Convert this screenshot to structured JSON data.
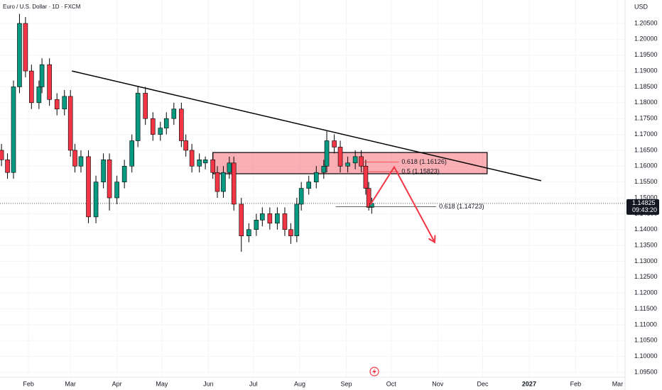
{
  "chart_data": {
    "type": "candlestick",
    "title": "Euro / U.S. Dollar · 1D · FXCM",
    "currency": "USD",
    "up_color": "#089981",
    "down_color": "#f23645",
    "xlim": [
      13,
      430
    ],
    "ylim": [
      1.09344,
      1.21238
    ],
    "xticks": [
      {
        "value": 32,
        "label": "Feb"
      },
      {
        "value": 60,
        "label": "Mar"
      },
      {
        "value": 91,
        "label": "Apr"
      },
      {
        "value": 121,
        "label": "May"
      },
      {
        "value": 152,
        "label": "Jun"
      },
      {
        "value": 182,
        "label": "Jul"
      },
      {
        "value": 213,
        "label": "Aug"
      },
      {
        "value": 244,
        "label": "Sep"
      },
      {
        "value": 274,
        "label": "Oct"
      },
      {
        "value": 305,
        "label": "Nov"
      },
      {
        "value": 335,
        "label": "Dec"
      },
      {
        "value": 366,
        "label": "2027"
      },
      {
        "value": 397,
        "label": "Feb"
      },
      {
        "value": 425,
        "label": "Mar"
      }
    ],
    "yticks": [
      {
        "value": 1.205,
        "label": "1.20500"
      },
      {
        "value": 1.2,
        "label": "1.20000"
      },
      {
        "value": 1.195,
        "label": "1.19500"
      },
      {
        "value": 1.19,
        "label": "1.19000"
      },
      {
        "value": 1.185,
        "label": "1.18500"
      },
      {
        "value": 1.18,
        "label": "1.18000"
      },
      {
        "value": 1.175,
        "label": "1.17500"
      },
      {
        "value": 1.17,
        "label": "1.17000"
      },
      {
        "value": 1.165,
        "label": "1.16500"
      },
      {
        "value": 1.16,
        "label": "1.16000"
      },
      {
        "value": 1.155,
        "label": "1.15500"
      },
      {
        "value": 1.15,
        "label": "1.15000"
      },
      {
        "value": 1.145,
        "label": "1.14500"
      },
      {
        "value": 1.14,
        "label": "1.14000"
      },
      {
        "value": 1.135,
        "label": "1.13500"
      },
      {
        "value": 1.13,
        "label": "1.13000"
      },
      {
        "value": 1.125,
        "label": "1.12500"
      },
      {
        "value": 1.12,
        "label": "1.12000"
      },
      {
        "value": 1.115,
        "label": "1.11500"
      },
      {
        "value": 1.11,
        "label": "1.11000"
      },
      {
        "value": 1.105,
        "label": "1.10500"
      },
      {
        "value": 1.1,
        "label": "1.10000"
      },
      {
        "value": 1.095,
        "label": "1.09500"
      }
    ],
    "x": [
      14,
      18,
      22,
      26,
      30,
      34,
      39,
      41,
      46,
      51,
      56,
      60,
      63,
      67,
      72,
      77,
      82,
      86,
      91,
      96,
      101,
      105,
      110,
      115,
      120,
      124,
      129,
      134,
      137,
      141,
      146,
      150,
      155,
      158,
      162,
      166,
      169,
      174,
      179,
      184,
      188,
      193,
      198,
      203,
      207,
      211,
      214,
      219,
      224,
      229,
      231,
      236,
      240,
      245,
      250,
      254,
      257,
      259,
      261
    ],
    "open": [
      1.165,
      1.162,
      1.158,
      1.185,
      1.205,
      1.19,
      1.18,
      1.185,
      1.192,
      1.181,
      1.178,
      1.182,
      1.165,
      1.16,
      1.163,
      1.144,
      1.155,
      1.162,
      1.15,
      1.155,
      1.16,
      1.168,
      1.183,
      1.175,
      1.17,
      1.172,
      1.175,
      1.178,
      1.168,
      1.165,
      1.16,
      1.161,
      1.162,
      1.158,
      1.152,
      1.158,
      1.161,
      1.148,
      1.138,
      1.14,
      1.143,
      1.145,
      1.142,
      1.145,
      1.14,
      1.138,
      1.148,
      1.153,
      1.155,
      1.158,
      1.16,
      1.168,
      1.166,
      1.16,
      1.161,
      1.163,
      1.16,
      1.153,
      1.147
    ],
    "high": [
      1.167,
      1.164,
      1.187,
      1.208,
      1.207,
      1.192,
      1.187,
      1.194,
      1.194,
      1.183,
      1.184,
      1.184,
      1.167,
      1.165,
      1.165,
      1.157,
      1.164,
      1.164,
      1.157,
      1.162,
      1.17,
      1.185,
      1.185,
      1.177,
      1.174,
      1.177,
      1.18,
      1.18,
      1.17,
      1.167,
      1.164,
      1.163,
      1.164,
      1.16,
      1.16,
      1.163,
      1.163,
      1.15,
      1.142,
      1.145,
      1.147,
      1.147,
      1.147,
      1.147,
      1.142,
      1.15,
      1.155,
      1.157,
      1.16,
      1.162,
      1.171,
      1.17,
      1.168,
      1.163,
      1.165,
      1.165,
      1.162,
      1.155,
      1.15
    ],
    "low": [
      1.16,
      1.156,
      1.156,
      1.183,
      1.188,
      1.178,
      1.178,
      1.183,
      1.179,
      1.176,
      1.176,
      1.163,
      1.158,
      1.158,
      1.142,
      1.142,
      1.153,
      1.146,
      1.148,
      1.153,
      1.158,
      1.166,
      1.173,
      1.168,
      1.168,
      1.17,
      1.173,
      1.166,
      1.163,
      1.158,
      1.158,
      1.159,
      1.156,
      1.15,
      1.15,
      1.156,
      1.146,
      1.133,
      1.136,
      1.138,
      1.141,
      1.14,
      1.14,
      1.138,
      1.1355,
      1.136,
      1.146,
      1.151,
      1.153,
      1.156,
      1.158,
      1.164,
      1.158,
      1.158,
      1.159,
      1.158,
      1.151,
      1.146,
      1.145
    ],
    "close": [
      1.162,
      1.158,
      1.185,
      1.205,
      1.19,
      1.18,
      1.185,
      1.192,
      1.181,
      1.178,
      1.182,
      1.165,
      1.16,
      1.163,
      1.144,
      1.155,
      1.162,
      1.15,
      1.155,
      1.16,
      1.168,
      1.183,
      1.175,
      1.17,
      1.172,
      1.175,
      1.178,
      1.168,
      1.165,
      1.16,
      1.162,
      1.162,
      1.158,
      1.152,
      1.158,
      1.161,
      1.148,
      1.138,
      1.14,
      1.143,
      1.145,
      1.142,
      1.145,
      1.14,
      1.138,
      1.148,
      1.153,
      1.155,
      1.158,
      1.16,
      1.168,
      1.166,
      1.16,
      1.161,
      1.163,
      1.16,
      1.153,
      1.147,
      1.14825
    ],
    "last_price": {
      "value": 1.14825,
      "label": "1.14825",
      "countdown": "09:43:20"
    },
    "trendline": {
      "x": [
        61,
        374
      ],
      "y": [
        1.19,
        1.1554
      ]
    },
    "zone": {
      "x": [
        155,
        338
      ],
      "y": [
        1.1643,
        1.1576
      ]
    },
    "levels": [
      {
        "x": [
          254,
          279
        ],
        "y": 1.16126,
        "label": "0.618 (1.16126)"
      },
      {
        "x": [
          254,
          279
        ],
        "y": 1.15823,
        "label": "0.5 (1.15823)"
      },
      {
        "x": [
          237,
          304
        ],
        "y": 1.14723,
        "label": "0.618 (1.14723)"
      }
    ],
    "projection": {
      "x": [
        260,
        276,
        303
      ],
      "y": [
        1.1478,
        1.1597,
        1.136
      ]
    }
  }
}
